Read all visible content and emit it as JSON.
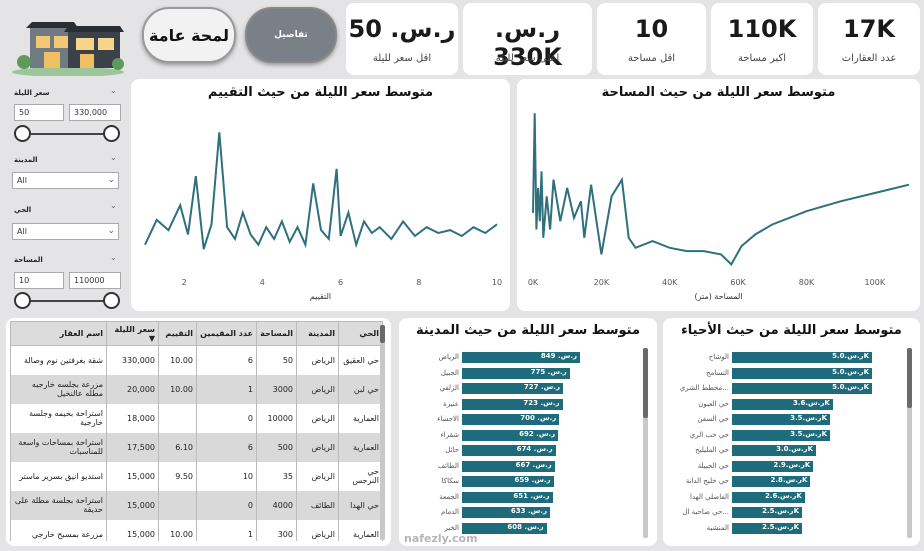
{
  "kpis": [
    {
      "value": "17K",
      "label": "عدد العقارات"
    },
    {
      "value": "110K",
      "label": "اكبر مساحة"
    },
    {
      "value": "10",
      "label": "اقل مساحة"
    },
    {
      "value": "ر.س. 330K",
      "label": "اعلى سعر لليلة"
    },
    {
      "value": "ر.س. 50",
      "label": "اقل سعر لليلة"
    }
  ],
  "nav": {
    "details_label": "تفاصيل",
    "overview_label": "لمحة عامة"
  },
  "filters": {
    "price": {
      "label": "سعر الليلة",
      "min": "50",
      "max": "330,000"
    },
    "city": {
      "label": "المدينة",
      "value": "All"
    },
    "district": {
      "label": "الحي",
      "value": "All"
    },
    "area": {
      "label": "المساحة",
      "min": "10",
      "max": "110000"
    }
  },
  "charts": {
    "area_title": "متوسط سعر الليلة من حيث المساحة",
    "area_xlabel": "المساحة (متر)",
    "area_ticks": [
      "0K",
      "20K",
      "40K",
      "60K",
      "80K",
      "100K"
    ],
    "rating_title": "متوسط سعر الليلة من حيث التقييم",
    "rating_xlabel": "التقييم",
    "rating_ticks": [
      "2",
      "4",
      "6",
      "8",
      "10"
    ],
    "district_title": "متوسط سعر الليلة من حيث الأحياء",
    "city_title": "متوسط سعر الليلة من حيث المدينة"
  },
  "chart_data": [
    {
      "type": "line",
      "title": "متوسط سعر الليلة من حيث المساحة",
      "xlabel": "المساحة (متر)",
      "xlim": [
        0,
        110000
      ],
      "x": [
        0,
        500,
        1000,
        1500,
        2000,
        2500,
        3000,
        4000,
        5000,
        6000,
        8000,
        10000,
        12000,
        14000,
        15000,
        17000,
        20000,
        23000,
        26000,
        28000,
        30000,
        35000,
        40000,
        45000,
        50000,
        55000,
        58000,
        61000,
        65000,
        70000,
        80000,
        90000,
        100000,
        110000
      ],
      "y": [
        0.35,
        0.95,
        0.25,
        0.5,
        0.3,
        0.6,
        0.2,
        0.45,
        0.25,
        0.55,
        0.3,
        0.5,
        0.32,
        0.42,
        0.2,
        0.52,
        0.1,
        0.45,
        0.55,
        0.2,
        0.14,
        0.18,
        0.14,
        0.12,
        0.12,
        0.1,
        0.04,
        0.15,
        0.22,
        0.28,
        0.36,
        0.42,
        0.47,
        0.52
      ]
    },
    {
      "type": "line",
      "title": "متوسط سعر الليلة من حيث التقييم",
      "xlabel": "التقييم",
      "xlim": [
        1,
        10
      ],
      "x": [
        1,
        1.3,
        1.6,
        1.9,
        2.1,
        2.3,
        2.5,
        2.7,
        2.9,
        3.1,
        3.3,
        3.5,
        3.7,
        3.9,
        4.1,
        4.3,
        4.5,
        4.7,
        4.9,
        5.1,
        5.3,
        5.5,
        5.7,
        5.9,
        6.0,
        6.2,
        6.4,
        6.6,
        6.8,
        7.0,
        7.3,
        7.6,
        7.9,
        8.2,
        8.5,
        8.8,
        9.1,
        9.4,
        9.7,
        10
      ],
      "y": [
        0.18,
        0.35,
        0.28,
        0.45,
        0.25,
        0.65,
        0.15,
        0.32,
        0.95,
        0.3,
        0.22,
        0.4,
        0.25,
        0.18,
        0.3,
        0.22,
        0.34,
        0.2,
        0.3,
        0.18,
        0.6,
        0.28,
        0.22,
        0.7,
        0.24,
        0.4,
        0.18,
        0.34,
        0.26,
        0.3,
        0.22,
        0.34,
        0.24,
        0.3,
        0.26,
        0.28,
        0.24,
        0.3,
        0.26,
        0.32
      ]
    },
    {
      "type": "bar",
      "title": "متوسط سعر الليلة من حيث الأحياء",
      "categories": [
        "الوشاح",
        "التسامح",
        "مخطط الشري...",
        "حي العيون",
        "حي السفن",
        "حي حب الري",
        "حي المليليح",
        "حي الجبيلة",
        "حي خليج الدانة",
        "الفاضلي الهدا",
        "حي ضاحية ال...",
        "المنشية"
      ],
      "values": [
        5000,
        5000,
        5000,
        3600,
        3500,
        3500,
        3000,
        2900,
        2800,
        2600,
        2500,
        2500
      ],
      "labels": [
        "ر.س.5.0K",
        "ر.س.5.0K",
        "ر.س.5.0K",
        "ر.س.3.6K",
        "ر.س.3.5K",
        "ر.س.3.5K",
        "ر.س.3.0K",
        "ر.س.2.9K",
        "ر.س.2.8K",
        "ر.س.2.6K",
        "ر.س.2.5K",
        "ر.س.2.5K"
      ]
    },
    {
      "type": "bar",
      "title": "متوسط سعر الليلة من حيث المدينة",
      "categories": [
        "الرياض",
        "الجبيل",
        "الزلفي",
        "عنيزة",
        "الاحساء",
        "شقراء",
        "حائل",
        "الطائف",
        "سكاكا",
        "الجمعة",
        "الدمام",
        "الخبر"
      ],
      "values": [
        849,
        775,
        727,
        723,
        700,
        692,
        674,
        667,
        659,
        651,
        633,
        608
      ],
      "labels": [
        "ر.س. 849",
        "ر.س. 775",
        "ر.س. 727",
        "ر.س. 723",
        "ر.س. 700",
        "ر.س. 692",
        "ر.س. 674",
        "ر.س. 667",
        "ر.س. 659",
        "ر.س. 651",
        "ر.س. 633",
        "ر.س. 608"
      ]
    }
  ],
  "table": {
    "headers": [
      "الحي",
      "المدينة",
      "المساحة",
      "عدد المقيمين",
      "التقييم",
      "سعر الليلة",
      "اسم العقار"
    ],
    "rows": [
      [
        "حي العقيق",
        "الرياض",
        "50",
        "6",
        "10.00",
        "330,000",
        "شقة بغرفتين نوم وصالة"
      ],
      [
        "حي لبن",
        "الرياض",
        "3000",
        "1",
        "10.00",
        "20,000",
        "مزرعة بجلسه خارجيه مطله عالنخيل"
      ],
      [
        "العمارية",
        "الرياض",
        "10000",
        "0",
        "",
        "18,000",
        "استراحة بخيمه وجلسة خارجية"
      ],
      [
        "العمارية",
        "الرياض",
        "500",
        "6",
        "6.10",
        "17,500",
        "استراحة بمساحات واسعة للمناسبات"
      ],
      [
        "حي النرجس",
        "الرياض",
        "35",
        "10",
        "9.50",
        "15,000",
        "استديو انيق بسرير ماستر"
      ],
      [
        "حي الهدا",
        "الطائف",
        "4000",
        "0",
        "",
        "15,000",
        "استراحة بجلسة مطلة على حديقة"
      ],
      [
        "العمارية",
        "الرياض",
        "300",
        "1",
        "10.00",
        "15,000",
        "مزرعة بمسبح خارجي"
      ]
    ]
  },
  "watermark": "nafezly.com",
  "colors": {
    "accent": "#1e6b7b",
    "line": "#2f6f7e",
    "background": "#e4e4e6"
  }
}
